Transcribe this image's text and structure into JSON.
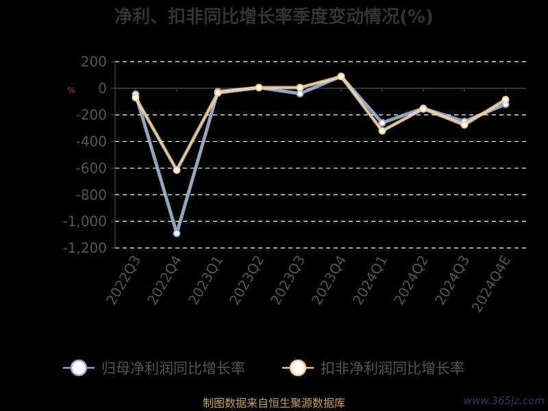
{
  "chart_data": {
    "type": "line",
    "title": "净利、扣非同比增长率季度变动情况(%)",
    "unit_label": "%",
    "categories": [
      "2022Q3",
      "2022Q4",
      "2023Q1",
      "2023Q2",
      "2023Q3",
      "2023Q4",
      "2024Q1",
      "2024Q2",
      "2024Q3",
      "2024Q4E"
    ],
    "series": [
      {
        "name": "归母净利润同比增长率",
        "color": "#8fa8d8",
        "values": [
          -45,
          -1090,
          -25,
          5,
          -40,
          90,
          -260,
          -150,
          -250,
          -120
        ]
      },
      {
        "name": "扣非净利润同比增长率",
        "color": "#f5c98a",
        "values": [
          -70,
          -615,
          -35,
          5,
          5,
          88,
          -320,
          -155,
          -275,
          -85
        ]
      }
    ],
    "ylim": [
      -1200,
      200
    ],
    "yticks": [
      200,
      0,
      -200,
      -400,
      -600,
      -800,
      -1000,
      -1200
    ],
    "ytick_labels": [
      "200",
      "0",
      "-200",
      "-400",
      "-600",
      "-800",
      "-1,000",
      "-1,200"
    ],
    "grid": true,
    "legend_position": "bottom"
  },
  "source_text": "制图数据来自恒生聚源数据库",
  "watermark": "www.365jz.com"
}
